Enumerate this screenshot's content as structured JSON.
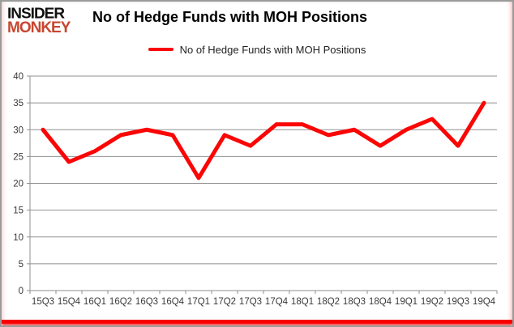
{
  "logo": {
    "line1": "INSIDER",
    "line2": "MONKEY",
    "line2_color": "#c7462e"
  },
  "header": {
    "title": "No of Hedge Funds with MOH Positions"
  },
  "legend": {
    "label": "No of Hedge Funds with MOH Positions",
    "swatch_color": "#fb0505"
  },
  "colors": {
    "line": "#fb0505",
    "grid": "#8f8f8f",
    "axis": "#8f8f8f",
    "tick_label": "#3a3a3a",
    "accent_bar": "#f60000",
    "accent_bar_fade": "#ff9a9a"
  },
  "chart_data": {
    "type": "line",
    "title": "No of Hedge Funds with MOH Positions",
    "categories": [
      "15Q3",
      "15Q4",
      "16Q1",
      "16Q2",
      "16Q3",
      "16Q4",
      "17Q1",
      "17Q2",
      "17Q3",
      "17Q4",
      "18Q1",
      "18Q2",
      "18Q3",
      "18Q4",
      "19Q1",
      "19Q2",
      "19Q3",
      "19Q4"
    ],
    "series": [
      {
        "name": "No of Hedge Funds with MOH Positions",
        "color": "#fb0505",
        "values": [
          30,
          24,
          26,
          29,
          30,
          29,
          21,
          29,
          27,
          31,
          31,
          29,
          30,
          27,
          30,
          32,
          27,
          35
        ]
      }
    ],
    "xlabel": "",
    "ylabel": "",
    "ylim": [
      0,
      40
    ],
    "yticks": [
      0,
      5,
      10,
      15,
      20,
      25,
      30,
      35,
      40
    ],
    "grid": true,
    "legend_position": "top-center"
  }
}
